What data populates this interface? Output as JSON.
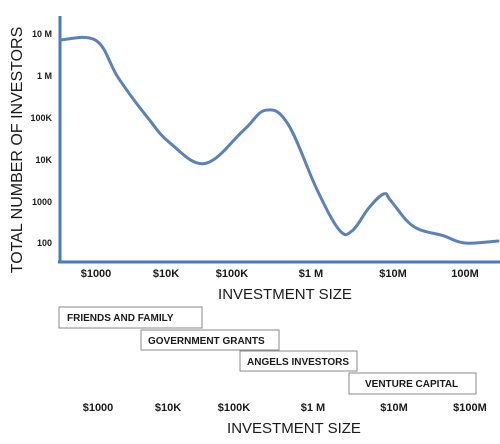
{
  "chart_data": {
    "type": "line",
    "ylabel": "TOTAL NUMBER OF INVESTORS",
    "xlabel": "INVESTMENT SIZE",
    "yscale": "log",
    "y_tick_labels": [
      "10 M",
      "1 M",
      "100K",
      "10K",
      "1000",
      "100"
    ],
    "x_tick_labels": [
      "$1000",
      "$10K",
      "$100K",
      "$1 M",
      "$10M",
      "100M"
    ],
    "line_color": "#5b82b8",
    "axis_color": "#4a7ab8",
    "series": [
      {
        "x": [
          1000,
          2000,
          5000,
          10000,
          30000,
          100000,
          200000,
          400000,
          1000000,
          2000000,
          3000000,
          5000000,
          8000000,
          10000000,
          20000000,
          50000000,
          100000000
        ],
        "y": [
          7000000,
          900000,
          100000,
          25000,
          8000,
          50000,
          150000,
          70000,
          1800,
          200,
          200,
          700,
          1500,
          1000,
          250,
          150,
          100
        ]
      }
    ]
  },
  "stages": {
    "xlabel": "INVESTMENT SIZE",
    "tick_labels": [
      "$1000",
      "$10K",
      "$100K",
      "$1 M",
      "$10M",
      "$100M"
    ],
    "items": [
      {
        "label": "FRIENDS AND FAMILY"
      },
      {
        "label": "GOVERNMENT GRANTS"
      },
      {
        "label": "ANGELS INVESTORS"
      },
      {
        "label": "VENTURE CAPITAL"
      }
    ]
  }
}
